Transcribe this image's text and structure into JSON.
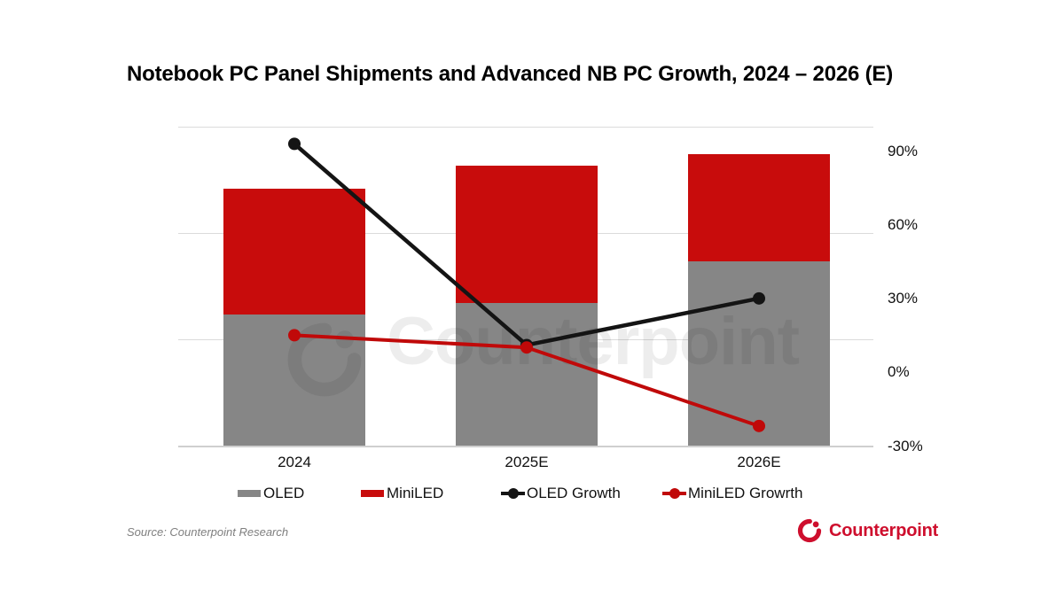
{
  "title": "Notebook PC Panel Shipments and Advanced NB PC Growth, 2024 – 2026 (E)",
  "source_note": "Source: Counterpoint Research",
  "watermark_text": "Counterpoint",
  "brand": {
    "name": "Counterpoint",
    "color": "#CE0E2D"
  },
  "colors": {
    "oled_bar": "#868686",
    "miniled_bar": "#C80C0C",
    "oled_line": "#141414",
    "miniled_line": "#C00909",
    "gridline": "#DBDBDB",
    "axis_line": "#CFCFCF",
    "text": "#111111",
    "source_text": "#7F7F7F",
    "watermark": "rgba(0,0,0,0.07)",
    "background": "#FFFFFF"
  },
  "chart_data": {
    "type": "combo-stacked-bar-line",
    "categories": [
      "2024",
      "2025E",
      "2026E"
    ],
    "stacked": true,
    "bar_series": [
      {
        "name": "OLED",
        "color": "#868686",
        "values": [
          1.23,
          1.34,
          1.73
        ]
      },
      {
        "name": "MiniLED",
        "color": "#C80C0C",
        "values": [
          1.19,
          1.29,
          1.01
        ]
      }
    ],
    "bar_note": "stacked columns; primary value axis hidden — values in relative units, gridlines at 0,1,2,3",
    "line_series": [
      {
        "name": "OLED Growth",
        "color": "#141414",
        "values_pct": [
          93,
          11,
          30
        ]
      },
      {
        "name": "MiniLED Growrth",
        "color": "#C00909",
        "values_pct": [
          15,
          10,
          -22
        ]
      }
    ],
    "right_axis": {
      "min": -30,
      "max": 100,
      "ticks": [
        {
          "label": "90%",
          "value": 90
        },
        {
          "label": "60%",
          "value": 60
        },
        {
          "label": "30%",
          "value": 30
        },
        {
          "label": "0%",
          "value": 0
        },
        {
          "label": "-30%",
          "value": -30
        }
      ]
    },
    "left_axis": {
      "visible": false,
      "min": 0,
      "max": 3,
      "gridline_unit": 1
    },
    "grid": "horizontal",
    "legend_position": "bottom",
    "legend": [
      {
        "label": "OLED",
        "swatch": "bar",
        "color": "#868686"
      },
      {
        "label": "MiniLED",
        "swatch": "bar",
        "color": "#C80C0C"
      },
      {
        "label": "OLED Growth",
        "swatch": "line",
        "color": "#141414"
      },
      {
        "label": "MiniLED Growrth",
        "swatch": "line",
        "color": "#C00909"
      }
    ]
  }
}
